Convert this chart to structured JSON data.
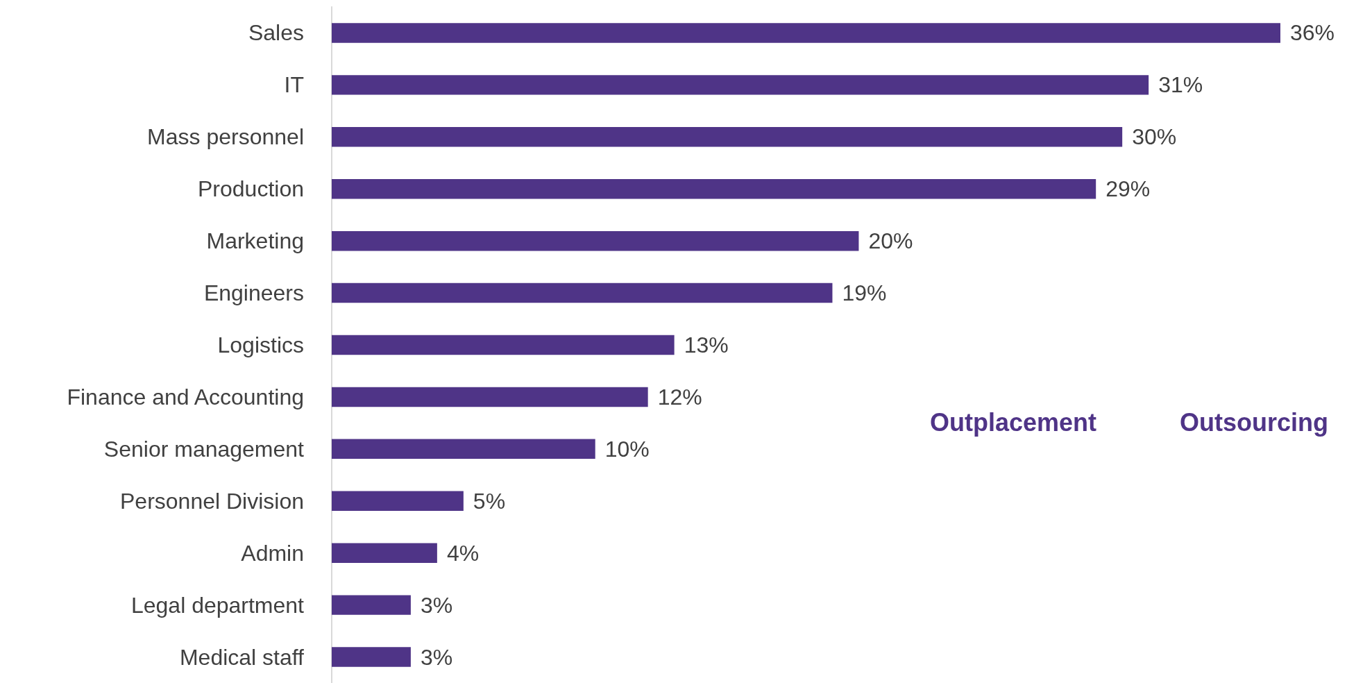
{
  "chart_data": {
    "type": "bar",
    "orientation": "horizontal",
    "categories": [
      "Sales",
      "IT",
      "Mass personnel",
      "Production",
      "Marketing",
      "Engineers",
      "Logistics",
      "Finance and Accounting",
      "Senior management",
      "Personnel Division",
      "Admin",
      "Legal department",
      "Medical staff"
    ],
    "series": [
      {
        "color": "#4f3487",
        "values": [
          36,
          31,
          30,
          29,
          20,
          19,
          13,
          12,
          10,
          5,
          4,
          3,
          3
        ],
        "value_labels": [
          "36%",
          "31%",
          "30%",
          "29%",
          "20%",
          "19%",
          "13%",
          "12%",
          "10%",
          "5%",
          "4%",
          "3%",
          "3%"
        ]
      }
    ],
    "annotations": [
      "Outplacement",
      "Outsourcing"
    ],
    "grid": false
  }
}
